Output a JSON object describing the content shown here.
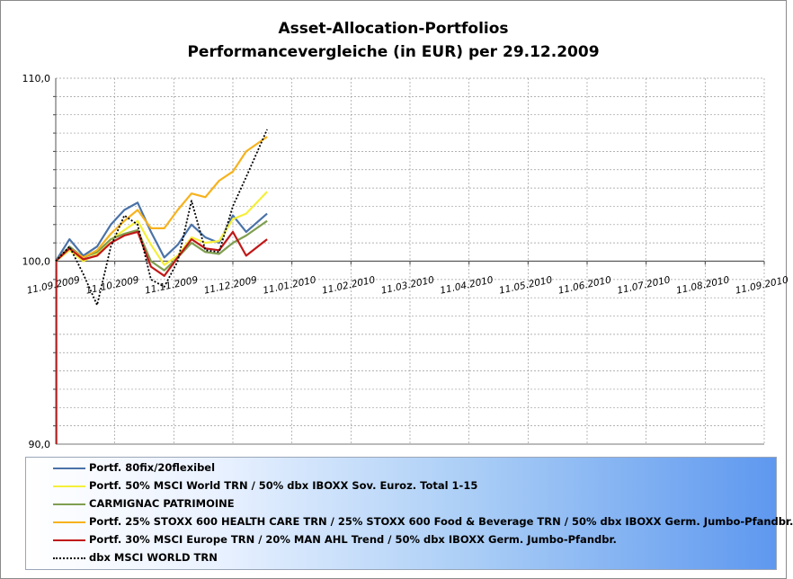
{
  "chart_data": {
    "type": "line",
    "title": "Asset-Allocation-Portfolios",
    "subtitle": "Performancevergleiche (in EUR) per 29.12.2009",
    "ylim": [
      90,
      110
    ],
    "y_ticks": [
      "110,0",
      "100,0",
      "90,0"
    ],
    "y_tick_values": [
      110,
      100,
      90
    ],
    "x_ticks": [
      "11.09.2009",
      "11.10.2009",
      "11.11.2009",
      "11.12.2009",
      "11.01.2010",
      "11.02.2010",
      "11.03.2010",
      "11.04.2010",
      "11.05.2010",
      "11.06.2010",
      "11.07.2010",
      "11.08.2010",
      "11.09.2010"
    ],
    "grid": true,
    "legend_position": "bottom",
    "x_dates": [
      "2009-09-11",
      "2009-09-18",
      "2009-09-25",
      "2009-10-02",
      "2009-10-09",
      "2009-10-16",
      "2009-10-23",
      "2009-10-30",
      "2009-11-06",
      "2009-11-13",
      "2009-11-20",
      "2009-11-27",
      "2009-12-04",
      "2009-12-11",
      "2009-12-18",
      "2009-12-29"
    ],
    "series": [
      {
        "name": "Portf. 80fix/20flexibel",
        "color": "#4a72a8",
        "dash": "solid",
        "values": [
          100.0,
          101.2,
          100.3,
          100.8,
          102.0,
          102.8,
          103.2,
          101.6,
          100.2,
          100.9,
          102.0,
          101.3,
          101.0,
          102.5,
          101.6,
          102.6
        ]
      },
      {
        "name": "Portf. 50% MSCI World TRN / 50% dbx IBOXX Sov. Euroz. Total 1-15",
        "color": "#f5ef3a",
        "dash": "solid",
        "values": [
          100.0,
          100.6,
          100.0,
          100.4,
          101.2,
          101.7,
          102.2,
          100.9,
          99.8,
          100.3,
          101.3,
          101.0,
          101.1,
          102.3,
          102.6,
          103.8
        ]
      },
      {
        "name": "CARMIGNAC PATRIMOINE",
        "color": "#7f9e50",
        "dash": "solid",
        "values": [
          100.0,
          100.8,
          100.2,
          100.5,
          101.2,
          101.5,
          101.7,
          100.0,
          99.5,
          100.2,
          101.0,
          100.5,
          100.4,
          101.0,
          101.4,
          102.2
        ]
      },
      {
        "name": "Portf. 25% STOXX 600  HEALTH CARE TRN / 25% STOXX 600  Food & Beverage TRN / 50% dbx IBOXX Germ. Jumbo-Pfandbr.",
        "color": "#f7b21d",
        "dash": "solid",
        "values": [
          100.0,
          100.7,
          100.2,
          100.6,
          101.5,
          102.2,
          102.8,
          101.8,
          101.8,
          102.8,
          103.7,
          103.5,
          104.4,
          104.9,
          106.0,
          106.8
        ]
      },
      {
        "name": "Portf. 30% MSCI Europe TRN / 20% MAN AHL Trend / 50% dbx IBOXX Germ. Jumbo-Pfandbr.",
        "color": "#c01818",
        "dash": "solid",
        "values": [
          100.0,
          100.7,
          100.1,
          100.3,
          101.0,
          101.4,
          101.6,
          99.7,
          99.2,
          100.2,
          101.2,
          100.7,
          100.6,
          101.6,
          100.3,
          101.2
        ]
      },
      {
        "name": "dbx MSCI WORLD TRN",
        "color": "#000000",
        "dash": "dotted",
        "values": [
          100.0,
          100.8,
          99.3,
          97.6,
          100.8,
          102.5,
          102.0,
          99.0,
          98.6,
          100.0,
          103.3,
          100.6,
          100.5,
          103.0,
          104.6,
          107.2
        ]
      }
    ]
  },
  "legend": {
    "items": [
      "Portf. 80fix/20flexibel",
      "Portf. 50% MSCI World TRN / 50% dbx IBOXX Sov. Euroz. Total 1-15",
      "CARMIGNAC PATRIMOINE",
      "Portf. 25% STOXX 600  HEALTH CARE TRN / 25% STOXX 600  Food & Beverage TRN / 50% dbx IBOXX Germ. Jumbo-Pfandbr.",
      "Portf. 30% MSCI Europe TRN / 20% MAN AHL Trend / 50% dbx IBOXX Germ. Jumbo-Pfandbr.",
      "dbx MSCI WORLD TRN"
    ]
  }
}
